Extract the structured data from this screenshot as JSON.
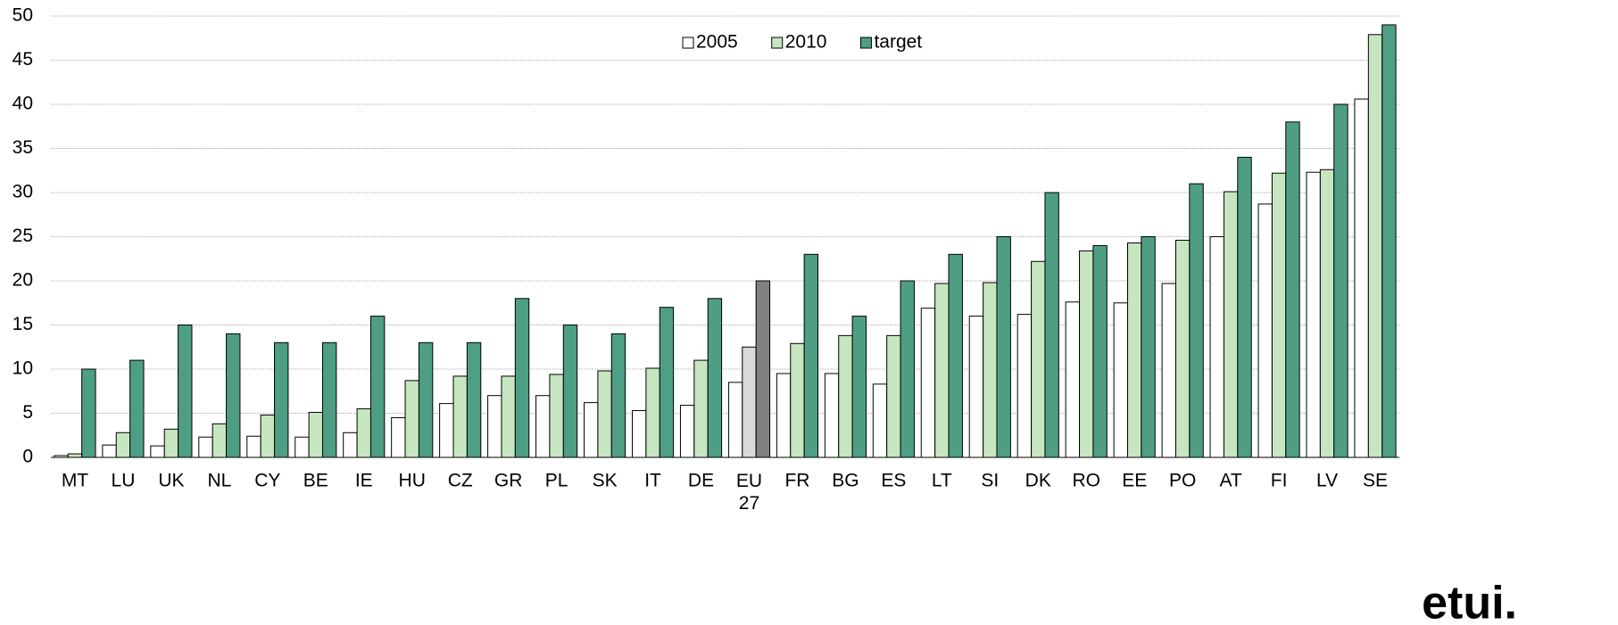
{
  "chart_data": {
    "type": "bar",
    "categories": [
      "MT",
      "LU",
      "UK",
      "NL",
      "CY",
      "BE",
      "IE",
      "HU",
      "CZ",
      "GR",
      "PL",
      "SK",
      "IT",
      "DE",
      "EU 27",
      "FR",
      "BG",
      "ES",
      "LT",
      "SI",
      "DK",
      "RO",
      "EE",
      "PO",
      "AT",
      "FI",
      "LV",
      "SE"
    ],
    "series": [
      {
        "name": "2005",
        "color": "#ffffff",
        "values": [
          0.2,
          1.4,
          1.3,
          2.3,
          2.4,
          2.3,
          2.8,
          4.5,
          6.1,
          7.0,
          7.0,
          6.2,
          5.3,
          5.9,
          8.5,
          9.5,
          9.5,
          8.3,
          16.9,
          16.0,
          16.2,
          17.6,
          17.5,
          19.7,
          25.0,
          28.7,
          32.3,
          40.6
        ]
      },
      {
        "name": "2010",
        "color": "#c6e6c0",
        "values": [
          0.4,
          2.8,
          3.2,
          3.8,
          4.8,
          5.1,
          5.5,
          8.7,
          9.2,
          9.2,
          9.4,
          9.8,
          10.1,
          11.0,
          12.5,
          12.9,
          13.8,
          13.8,
          19.7,
          19.8,
          22.2,
          23.4,
          24.3,
          24.6,
          30.1,
          32.2,
          32.6,
          47.9
        ]
      },
      {
        "name": "target",
        "color": "#4e9e84",
        "values": [
          10,
          11,
          15,
          14,
          13,
          13,
          16,
          13,
          13,
          18,
          15,
          14,
          17,
          18,
          20,
          23,
          16,
          20,
          23,
          25,
          30,
          24,
          25,
          31,
          34,
          38,
          40,
          49
        ]
      }
    ],
    "highlight_category": "EU 27",
    "highlight_colors": [
      "#ffffff",
      "#d9d9d9",
      "#808080"
    ],
    "ylim": [
      0,
      50
    ],
    "yticks": [
      0,
      5,
      10,
      15,
      20,
      25,
      30,
      35,
      40,
      45,
      50
    ],
    "grid": true,
    "legend": "top",
    "logo": "etui."
  }
}
